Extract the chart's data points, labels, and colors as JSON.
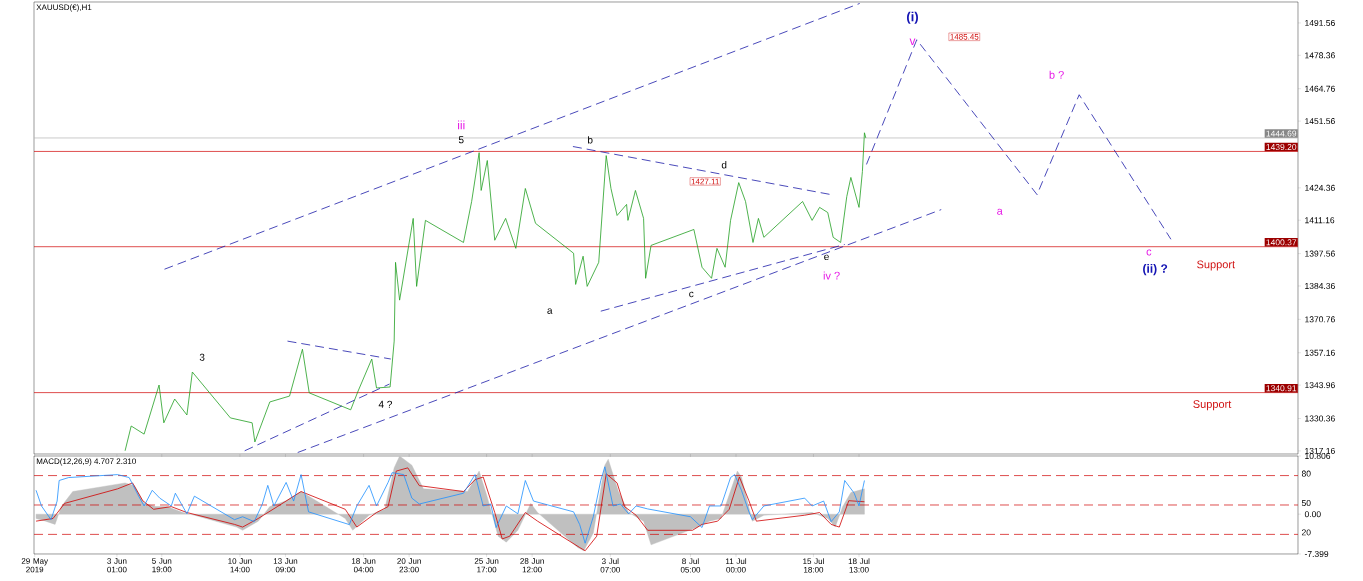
{
  "chart_data": [
    {
      "type": "line",
      "title": "XAUUSD(€),H1",
      "xlim": [
        "2019-05-28T23:00",
        "2019-08-14T11:00"
      ],
      "ylim": [
        1315.9,
        1500.1
      ],
      "tick_labels": "y",
      "xticks": [
        "2019-05-29",
        "2019-06-03T01:00",
        "2019-06-05T19:00",
        "2019-06-10T14:00",
        "2019-06-13T09:00",
        "2019-06-18T04:00",
        "2019-06-20T23:00",
        "2019-06-25T17:00",
        "2019-06-28T12:00",
        "2019-07-03T07:00",
        "2019-07-08T05:00",
        "2019-07-11T00:00",
        "2019-07-15T18:00",
        "2019-07-18T13:00"
      ],
      "yticks": [
        1317.16,
        1330.36,
        {
          "value": 1343.96,
          "label": "1343.96"
        },
        1357.16,
        1370.76,
        1384.36,
        1397.56,
        1411.16,
        1424.36,
        1451.56,
        1464.76,
        1478.36,
        1491.56
      ],
      "series": [
        {
          "color": "#22a022",
          "line_style": "solid",
          "x": [
            "2019-06-03T13:00",
            "2019-06-03T22:00",
            "2019-06-04T17:00",
            "2019-06-05T15:00",
            "2019-06-05T22:00",
            "2019-06-06T14:00",
            "2019-06-07T08:00",
            "2019-06-07T16:00",
            "2019-06-10T00:00",
            "2019-06-11T08:00",
            "2019-06-11T12:00",
            "2019-06-12T10:00",
            "2019-06-13T15:00",
            "2019-06-14T10:00",
            "2019-06-14T20:00",
            "2019-06-17T09:00",
            "2019-06-17T20:00",
            "2019-06-18T16:00",
            "2019-06-18T23:00",
            "2019-06-19T19:00",
            "2019-06-20T01:00",
            "2019-06-20T03:00",
            "2019-06-20T09:00",
            "2019-06-21T05:00",
            "2019-06-21T10:00",
            "2019-06-21T23:00",
            "2019-06-24T07:00",
            "2019-06-24T19:00",
            "2019-06-25T06:00",
            "2019-06-25T09:00",
            "2019-06-25T18:00",
            "2019-06-26T05:00",
            "2019-06-26T21:00",
            "2019-06-27T12:00",
            "2019-06-28T02:00",
            "2019-06-28T17:00",
            "2019-07-01T01:00",
            "2019-07-01T04:00",
            "2019-07-01T15:00",
            "2019-07-01T21:00",
            "2019-07-02T14:00",
            "2019-07-03T01:00",
            "2019-07-03T08:00",
            "2019-07-03T17:00",
            "2019-07-04T07:00",
            "2019-07-04T09:00",
            "2019-07-04T20:00",
            "2019-07-05T08:00",
            "2019-07-05T11:00",
            "2019-07-05T19:00",
            "2019-07-08T10:00",
            "2019-07-08T22:00",
            "2019-07-09T12:00",
            "2019-07-09T20:00",
            "2019-07-10T08:00",
            "2019-07-10T16:00",
            "2019-07-11T04:00",
            "2019-07-11T14:00",
            "2019-07-12T01:00",
            "2019-07-12T09:00",
            "2019-07-12T17:00",
            "2019-07-15T02:00",
            "2019-07-15T16:00",
            "2019-07-16T03:00",
            "2019-07-16T15:00",
            "2019-07-16T23:00",
            "2019-07-17T10:00",
            "2019-07-17T19:00",
            "2019-07-18T01:00",
            "2019-07-18T13:00",
            "2019-07-18T18:00",
            "2019-07-18T21:00",
            "2019-07-18T23:00"
          ],
          "values": [
            1317.2,
            1327.3,
            1324,
            1344,
            1328.6,
            1338.3,
            1331.8,
            1349.3,
            1330.6,
            1328.6,
            1320.8,
            1337.1,
            1339.5,
            1358.6,
            1340.8,
            1333.9,
            1341.6,
            1354.6,
            1342.8,
            1343.2,
            1361.9,
            1394,
            1378.6,
            1411.9,
            1384.2,
            1411.1,
            1402.1,
            1418.8,
            1438.7,
            1423.3,
            1435.5,
            1403,
            1411.9,
            1399.7,
            1424.1,
            1409.9,
            1397.7,
            1385,
            1396.5,
            1384.2,
            1394,
            1437.5,
            1424.1,
            1413.1,
            1417.6,
            1411.1,
            1423.3,
            1411.9,
            1387.5,
            1400.9,
            1407.4,
            1392,
            1387.5,
            1399.7,
            1392,
            1411.1,
            1426.5,
            1418.8,
            1402.1,
            1411.9,
            1404.2,
            1418.8,
            1411.1,
            1416.4,
            1414.3,
            1404.2,
            1402.1,
            1420.8,
            1428.6,
            1416.4,
            1431,
            1446.8,
            1444.7
          ]
        },
        {
          "color": "#1c1ca8",
          "line_style": "dashed",
          "x": [
            "2019-06-05T23:00",
            "2019-07-18T14:00"
          ],
          "values": [
            1391.2,
            1499.5
          ]
        },
        {
          "color": "#1c1ca8",
          "line_style": "dashed",
          "x": [
            "2019-06-14T03:00",
            "2019-07-23T14:00"
          ],
          "values": [
            1316.5,
            1415.5
          ]
        },
        {
          "color": "#1c1ca8",
          "line_style": "dashed",
          "x": [
            "2019-07-02T17:00",
            "2019-07-17T16:00"
          ],
          "values": [
            1374.1,
            1401.3
          ]
        },
        {
          "color": "#1c1ca8",
          "line_style": "dashed",
          "x": [
            "2019-07-01T00:00",
            "2019-07-16T20:00"
          ],
          "values": [
            1441.2,
            1421.6
          ]
        },
        {
          "color": "#1c1ca8",
          "line_style": "dashed",
          "x": [
            "2019-06-13T12:00",
            "2019-06-19T20:00"
          ],
          "values": [
            1361.9,
            1354.6
          ]
        },
        {
          "color": "#1c1ca8",
          "line_style": "dashed",
          "x": [
            "2019-06-10T21:00",
            "2019-06-19T18:00"
          ],
          "values": [
            1317.2,
            1344.4
          ]
        },
        {
          "color": "#1c1ca8",
          "line_style": "dashed",
          "x": [
            "2019-07-19T00:00",
            "2019-07-22T02:00",
            "2019-07-29T11:00",
            "2019-08-01T01:00",
            "2019-08-06T16:00"
          ],
          "values": [
            1433.9,
            1484.7,
            1421.6,
            1462.3,
            1403.4
          ]
        }
      ],
      "ref_lines": [
        {
          "axis": "y",
          "value": 1444.69,
          "label": "1444.69",
          "color": "#b4b4b4"
        },
        {
          "axis": "y",
          "value": 1439.2,
          "label": "1439.20",
          "color": "#d00000"
        },
        {
          "axis": "y",
          "value": 1400.37,
          "label": "1400.37",
          "color": "#d00000"
        },
        {
          "axis": "y",
          "value": 1340.91,
          "label": "1340.91",
          "color": "#d00000"
        }
      ],
      "annotations": [
        "iii",
        "5",
        "b",
        "d",
        "1427.11",
        "a",
        "c",
        "e",
        "iv ?",
        "3",
        "4 ?",
        "(i)",
        "v",
        "1485.45",
        "a",
        "b ?",
        "c",
        "(ii) ?",
        "Support",
        "Support"
      ]
    },
    {
      "type": "line",
      "title": "MACD(12,26,9) 4.707 2.310",
      "xlim": [
        "2019-05-28T23:00",
        "2019-08-14T11:00"
      ],
      "ylim": [
        -7.399,
        10.806
      ],
      "y2lim": [
        0,
        100
      ],
      "xticks": [
        {
          "value": "2019-05-29",
          "label": "29 May 2019"
        },
        {
          "value": "2019-06-03T01:00",
          "label": "3 Jun 01:00"
        },
        {
          "value": "2019-06-05T19:00",
          "label": "5 Jun 19:00"
        },
        {
          "value": "2019-06-10T14:00",
          "label": "10 Jun 14:00"
        },
        {
          "value": "2019-06-13T09:00",
          "label": "13 Jun 09:00"
        },
        {
          "value": "2019-06-18T04:00",
          "label": "18 Jun 04:00"
        },
        {
          "value": "2019-06-20T23:00",
          "label": "20 Jun 23:00"
        },
        {
          "value": "2019-06-25T17:00",
          "label": "25 Jun 17:00"
        },
        {
          "value": "2019-06-28T12:00",
          "label": "28 Jun 12:00"
        },
        {
          "value": "2019-07-03T07:00",
          "label": "3 Jul 07:00"
        },
        {
          "value": "2019-07-08T05:00",
          "label": "8 Jul 05:00"
        },
        {
          "value": "2019-07-11T00:00",
          "label": "11 Jul 00:00"
        },
        {
          "value": "2019-07-15T18:00",
          "label": "15 Jul 18:00"
        },
        {
          "value": "2019-07-18T13:00",
          "label": "18 Jul 13:00"
        }
      ],
      "yticks": [
        10.806,
        {
          "value": 0,
          "label": "0.00"
        },
        -7.399
      ],
      "y2ticks": [
        80,
        50,
        20
      ],
      "series": [
        {
          "type": "area",
          "color": "#c0c0c0",
          "x": [
            "2019-05-29T02:00",
            "2019-05-29T16:00",
            "2019-05-30T06:00",
            "2019-05-30T15:00",
            "2019-05-31T08:00",
            "2019-06-03T13:00",
            "2019-06-04T03:00",
            "2019-06-04T17:00",
            "2019-06-05T10:00",
            "2019-06-06T03:00",
            "2019-06-07T02:00",
            "2019-06-07T19:00",
            "2019-06-10T09:00",
            "2019-06-10T18:00",
            "2019-06-11T17:00",
            "2019-06-12T10:00",
            "2019-06-13T10:00",
            "2019-06-14T08:00",
            "2019-06-17T01:00",
            "2019-06-17T12:00",
            "2019-06-18T12:00",
            "2019-06-19T11:00",
            "2019-06-20T01:00",
            "2019-06-20T09:00",
            "2019-06-21T03:00",
            "2019-06-21T20:00",
            "2019-06-24T13:00",
            "2019-06-25T06:00",
            "2019-06-25T17:00",
            "2019-06-26T10:00",
            "2019-06-26T22:00",
            "2019-06-27T15:00",
            "2019-06-28T10:00",
            "2019-06-28T20:00",
            "2019-07-01T07:00",
            "2019-07-01T16:00",
            "2019-07-02T06:00",
            "2019-07-02T23:00",
            "2019-07-03T04:00",
            "2019-07-03T19:00",
            "2019-07-04T10:00",
            "2019-07-05T08:00",
            "2019-07-05T19:00",
            "2019-07-08T16:00",
            "2019-07-09T09:00",
            "2019-07-10T02:00",
            "2019-07-11T02:00",
            "2019-07-11T08:00",
            "2019-07-12T00:00",
            "2019-07-12T17:00",
            "2019-07-15T16:00",
            "2019-07-16T15:00",
            "2019-07-17T02:00",
            "2019-07-17T13:00",
            "2019-07-18T01:00",
            "2019-07-18T21:00"
          ],
          "values": [
            -0.8,
            -1.3,
            -1.9,
            1.4,
            4.2,
            5.8,
            5.3,
            2,
            1.4,
            1.4,
            0.3,
            -0.2,
            -2.4,
            -3,
            -1.3,
            1.4,
            2.5,
            4.2,
            -0.8,
            -3,
            -0.2,
            0.9,
            8.6,
            10.8,
            9.1,
            4.7,
            4.2,
            8,
            3.6,
            -4.1,
            -5.2,
            -3,
            2,
            0.3,
            -6.2,
            -6.8,
            -3.5,
            9.1,
            10.2,
            4.2,
            0.3,
            -1.3,
            -5.7,
            -2.4,
            -1.3,
            -0.8,
            8,
            6.9,
            -1.3,
            -0.2,
            0.3,
            -0.8,
            -2.4,
            1.4,
            4,
            4.7
          ]
        },
        {
          "type": "line",
          "color": "#d00000",
          "x": [
            "2019-05-29T02:00",
            "2019-05-30T03:00",
            "2019-05-30T20:00",
            "2019-06-03T02:00",
            "2019-06-04T00:00",
            "2019-06-04T15:00",
            "2019-06-05T07:00",
            "2019-06-06T09:00",
            "2019-06-07T08:00",
            "2019-06-10T06:00",
            "2019-06-10T18:00",
            "2019-06-11T17:00",
            "2019-06-12T21:00",
            "2019-06-14T08:00",
            "2019-06-17T01:00",
            "2019-06-17T18:00",
            "2019-06-18T23:00",
            "2019-06-19T16:00",
            "2019-06-20T04:00",
            "2019-06-20T21:00",
            "2019-06-21T14:00",
            "2019-06-24T07:00",
            "2019-06-25T00:00",
            "2019-06-25T12:00",
            "2019-06-26T05:00",
            "2019-06-26T16:00",
            "2019-06-27T03:00",
            "2019-06-28T02:00",
            "2019-06-28T20:00",
            "2019-07-01T10:00",
            "2019-07-01T18:00",
            "2019-07-02T11:00",
            "2019-07-03T01:00",
            "2019-07-03T17:00",
            "2019-07-04T04:00",
            "2019-07-04T21:00",
            "2019-07-05T14:00",
            "2019-07-08T08:00",
            "2019-07-08T22:00",
            "2019-07-09T21:00",
            "2019-07-10T14:00",
            "2019-07-11T05:00",
            "2019-07-11T19:00",
            "2019-07-12T06:00",
            "2019-07-15T05:00",
            "2019-07-16T03:00",
            "2019-07-16T20:00",
            "2019-07-17T08:00",
            "2019-07-17T22:00",
            "2019-07-18T21:00"
          ],
          "values": [
            -1.3,
            -0.8,
            2,
            4.7,
            5.8,
            2.5,
            0.9,
            1.4,
            0.3,
            -1.9,
            -2.4,
            -0.8,
            1.4,
            4.2,
            0.9,
            -2.4,
            0.3,
            1.4,
            8,
            8.6,
            5.3,
            4.2,
            6.4,
            6.9,
            0.3,
            -4.6,
            -4.1,
            0.3,
            -1.3,
            -6.2,
            -6.8,
            -4.1,
            7.5,
            5.8,
            1.4,
            -0.2,
            -3,
            -3,
            -1.9,
            -1.3,
            0.9,
            6.9,
            2.5,
            -1.3,
            -0.2,
            0.3,
            -1.9,
            -2.4,
            2.5,
            2.3
          ]
        },
        {
          "type": "line",
          "axis": "y2",
          "color": "#1e8fff",
          "x": [
            "2019-05-29T02:00",
            "2019-05-29T10:00",
            "2019-05-30T00:00",
            "2019-05-30T09:00",
            "2019-05-30T12:00",
            "2019-05-31T02:00",
            "2019-06-03T02:00",
            "2019-06-03T19:00",
            "2019-06-04T09:00",
            "2019-06-04T17:00",
            "2019-06-05T05:00",
            "2019-06-05T16:00",
            "2019-06-06T09:00",
            "2019-06-06T15:00",
            "2019-06-07T08:00",
            "2019-06-07T19:00",
            "2019-06-10T06:00",
            "2019-06-10T18:00",
            "2019-06-11T11:00",
            "2019-06-11T23:00",
            "2019-06-12T07:00",
            "2019-06-12T16:00",
            "2019-06-13T10:00",
            "2019-06-13T21:00",
            "2019-06-14T08:00",
            "2019-06-14T19:00",
            "2019-06-17T07:00",
            "2019-06-17T18:00",
            "2019-06-18T12:00",
            "2019-06-18T23:00",
            "2019-06-19T16:00",
            "2019-06-19T22:00",
            "2019-06-20T15:00",
            "2019-06-21T03:00",
            "2019-06-21T14:00",
            "2019-06-24T07:00",
            "2019-06-25T00:00",
            "2019-06-25T12:00",
            "2019-06-25T23:00",
            "2019-06-26T07:00",
            "2019-06-26T22:00",
            "2019-06-27T15:00",
            "2019-06-28T02:00",
            "2019-06-28T14:00",
            "2019-07-01T01:00",
            "2019-07-01T10:00",
            "2019-07-01T18:00",
            "2019-07-02T06:00",
            "2019-07-02T17:00",
            "2019-07-02T23:00",
            "2019-07-03T11:00",
            "2019-07-03T22:00",
            "2019-07-04T10:00",
            "2019-07-04T21:00",
            "2019-07-05T14:00",
            "2019-07-08T05:00",
            "2019-07-08T22:00",
            "2019-07-09T09:00",
            "2019-07-10T02:00",
            "2019-07-10T16:00",
            "2019-07-10T22:00",
            "2019-07-11T08:00",
            "2019-07-11T19:00",
            "2019-07-12T00:00",
            "2019-07-12T17:00",
            "2019-07-15T05:00",
            "2019-07-15T16:00",
            "2019-07-16T09:00",
            "2019-07-16T20:00",
            "2019-07-17T08:00",
            "2019-07-17T16:00",
            "2019-07-18T06:00",
            "2019-07-18T13:00",
            "2019-07-18T21:00"
          ],
          "values": [
            65,
            49,
            35,
            54,
            75,
            78,
            81,
            78,
            59,
            49,
            65,
            57,
            49,
            62,
            41,
            59,
            35,
            38,
            33,
            51,
            70,
            49,
            73,
            54,
            81,
            43,
            30,
            49,
            70,
            49,
            73,
            83,
            81,
            57,
            51,
            62,
            81,
            49,
            51,
            27,
            49,
            41,
            75,
            54,
            43,
            30,
            11,
            38,
            75,
            89,
            49,
            51,
            41,
            49,
            46,
            38,
            27,
            49,
            49,
            78,
            81,
            65,
            43,
            35,
            49,
            57,
            49,
            54,
            33,
            43,
            75,
            62,
            49,
            75
          ]
        }
      ],
      "ref_lines": [
        {
          "axis": "y2",
          "value": 80,
          "color": "#d00000",
          "line_style": "dashed"
        },
        {
          "axis": "y2",
          "value": 50,
          "color": "#d00000",
          "line_style": "dashed"
        },
        {
          "axis": "y2",
          "value": 20,
          "color": "#d00000",
          "line_style": "dashed"
        }
      ]
    }
  ]
}
